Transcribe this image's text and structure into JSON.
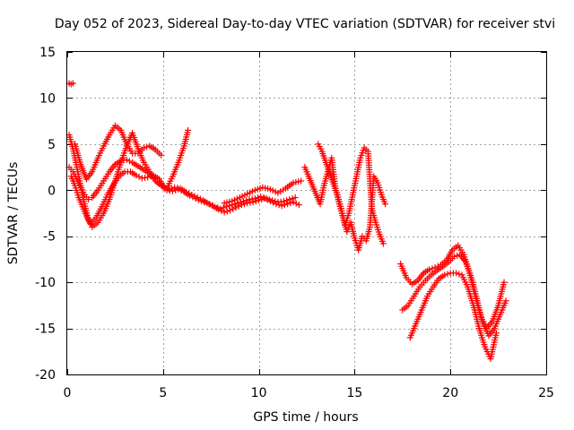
{
  "chart_data": {
    "type": "scatter",
    "title": "Day 052 of 2023, Sidereal Day-to-day VTEC variation (SDTVAR) for receiver stvi",
    "xlabel": "GPS time / hours",
    "ylabel": "SDTVAR / TECUs",
    "xlim": [
      0,
      25
    ],
    "ylim": [
      -20,
      15
    ],
    "x_ticks": [
      0,
      5,
      10,
      15,
      20,
      25
    ],
    "y_ticks": [
      -20,
      -15,
      -10,
      -5,
      0,
      5,
      10,
      15
    ],
    "grid": true,
    "legend": "none",
    "marker": "plus",
    "color": "#ff0000",
    "series": [
      {
        "x": [
          0.1,
          0.2,
          0.3
        ],
        "y": [
          11.6,
          11.5,
          11.6
        ]
      },
      {
        "x": [
          0.1,
          0.3,
          0.5,
          0.7,
          0.9,
          1.1,
          1.3,
          1.6,
          1.9,
          2.2,
          2.5,
          2.8,
          3.1,
          3.4,
          3.7,
          4.0,
          4.3,
          4.6,
          4.9,
          5.1,
          5.3,
          5.6,
          5.9,
          6.2,
          6.5,
          6.8,
          7.1,
          7.4,
          7.7,
          8.0,
          8.3,
          8.6,
          8.9,
          9.2,
          9.5,
          9.8,
          10.1,
          10.4,
          10.7,
          11.0,
          11.3,
          11.6,
          11.9
        ],
        "y": [
          2.5,
          2.0,
          1.2,
          0.3,
          -0.5,
          -1.0,
          -0.8,
          0.0,
          1.0,
          2.0,
          2.8,
          3.2,
          3.3,
          3.0,
          2.6,
          2.2,
          1.8,
          1.2,
          0.6,
          0.2,
          0.1,
          0.3,
          0.2,
          -0.2,
          -0.5,
          -0.8,
          -1.1,
          -1.5,
          -1.8,
          -2.0,
          -1.8,
          -1.6,
          -1.4,
          -1.2,
          -1.0,
          -0.9,
          -0.7,
          -0.9,
          -1.1,
          -1.3,
          -1.2,
          -1.0,
          -0.8
        ]
      },
      {
        "x": [
          0.2,
          0.4,
          0.6,
          0.8,
          1.0,
          1.2,
          1.5,
          1.8,
          2.1,
          2.4,
          2.7,
          3.0,
          3.3,
          3.6,
          3.9,
          4.2,
          4.5,
          4.8,
          5.0,
          5.2,
          5.5,
          5.8,
          6.1,
          6.4,
          6.7,
          7.0,
          7.3,
          7.6,
          7.9,
          8.2,
          8.5,
          8.8,
          9.1,
          9.4,
          9.7,
          10.0,
          10.3,
          10.6,
          10.9,
          11.2,
          11.5,
          11.8,
          12.1
        ],
        "y": [
          1.5,
          0.5,
          -0.8,
          -1.8,
          -2.8,
          -3.6,
          -3.0,
          -1.8,
          -0.5,
          0.6,
          1.5,
          2.0,
          2.0,
          1.6,
          1.3,
          1.4,
          1.6,
          1.2,
          0.5,
          0.0,
          -0.1,
          0.1,
          -0.2,
          -0.6,
          -0.9,
          -1.2,
          -1.4,
          -1.7,
          -2.1,
          -2.4,
          -2.2,
          -1.9,
          -1.6,
          -1.4,
          -1.3,
          -1.1,
          -0.9,
          -1.2,
          -1.5,
          -1.7,
          -1.5,
          -1.3,
          -1.6
        ]
      },
      {
        "x": [
          0.1,
          0.3,
          0.5,
          0.7,
          0.9,
          1.1,
          1.3,
          1.6,
          1.9,
          2.2,
          2.5,
          2.8,
          3.1,
          3.4,
          3.7,
          4.0,
          4.3,
          4.6,
          4.9,
          5.2,
          5.5,
          5.8,
          6.1,
          6.3
        ],
        "y": [
          6.0,
          4.5,
          2.5,
          0.5,
          -1.5,
          -3.2,
          -4.0,
          -3.5,
          -2.5,
          -1.0,
          1.0,
          3.0,
          4.8,
          6.2,
          4.5,
          3.0,
          2.0,
          1.0,
          0.5,
          0.2,
          1.5,
          3.0,
          4.8,
          6.5
        ]
      },
      {
        "x": [
          0.4,
          0.7,
          1.0,
          1.3,
          1.6,
          1.9,
          2.2,
          2.5,
          2.8,
          3.1,
          3.4,
          3.7,
          4.0,
          4.3,
          4.6,
          4.9
        ],
        "y": [
          5.0,
          2.8,
          1.2,
          2.0,
          3.5,
          4.8,
          6.0,
          7.0,
          6.5,
          5.0,
          4.0,
          4.0,
          4.6,
          4.8,
          4.4,
          3.8
        ]
      },
      {
        "x": [
          8.2,
          8.6,
          9.0,
          9.4,
          9.8,
          10.2,
          10.6,
          11.0,
          11.4,
          11.8,
          12.2
        ],
        "y": [
          -1.4,
          -1.2,
          -0.8,
          -0.4,
          0.0,
          0.3,
          0.1,
          -0.3,
          0.2,
          0.8,
          1.0
        ]
      },
      {
        "x": [
          12.4,
          12.6,
          13.2,
          13.4,
          13.6,
          13.8,
          14.0,
          14.2,
          14.4,
          14.6,
          14.8,
          15.0,
          15.2,
          15.4,
          15.6,
          15.8,
          16.0,
          16.2,
          16.4,
          16.6
        ],
        "y": [
          2.5,
          1.5,
          -1.5,
          0.5,
          2.0,
          3.5,
          0.2,
          -1.5,
          -3.0,
          -4.5,
          -3.5,
          -5.2,
          -6.5,
          -5.0,
          -5.5,
          -4.0,
          1.5,
          0.8,
          -0.5,
          -1.5
        ]
      },
      {
        "x": [
          13.1,
          13.3,
          13.5,
          14.1,
          14.3,
          14.5,
          14.7,
          14.9,
          15.1,
          15.3,
          15.5,
          15.7,
          15.9,
          16.1,
          16.3,
          16.5
        ],
        "y": [
          5.0,
          4.2,
          3.0,
          -0.5,
          -2.0,
          -3.8,
          -2.5,
          -0.5,
          1.5,
          3.5,
          4.6,
          4.2,
          -2.0,
          -3.5,
          -4.8,
          -5.8
        ]
      },
      {
        "x": [
          17.4,
          17.7,
          18.0,
          18.3,
          18.6,
          18.9,
          19.2,
          19.5,
          19.8,
          20.1,
          20.4,
          20.7,
          21.0,
          21.3,
          21.6,
          21.9,
          22.2,
          22.5,
          22.8
        ],
        "y": [
          -8.0,
          -9.5,
          -10.2,
          -9.8,
          -9.0,
          -8.6,
          -8.4,
          -8.1,
          -7.6,
          -6.5,
          -6.0,
          -7.0,
          -9.0,
          -11.5,
          -13.8,
          -15.0,
          -14.2,
          -12.5,
          -10.0
        ]
      },
      {
        "x": [
          17.5,
          17.8,
          18.1,
          18.4,
          18.7,
          19.0,
          19.3,
          19.6,
          19.9,
          20.2,
          20.5,
          20.8,
          21.1,
          21.4,
          21.7,
          22.0,
          22.3,
          22.6,
          22.9
        ],
        "y": [
          -13.0,
          -12.5,
          -11.5,
          -10.5,
          -9.8,
          -9.2,
          -8.7,
          -8.3,
          -7.8,
          -7.2,
          -7.0,
          -7.8,
          -9.5,
          -12.0,
          -14.5,
          -15.8,
          -15.0,
          -13.5,
          -12.0
        ]
      },
      {
        "x": [
          17.9,
          18.2,
          18.5,
          18.8,
          19.1,
          19.4,
          19.7,
          20.0,
          20.3,
          20.6,
          20.9,
          21.2,
          21.5,
          21.8,
          22.1,
          22.4
        ],
        "y": [
          -16.0,
          -14.5,
          -13.0,
          -11.5,
          -10.5,
          -9.6,
          -9.2,
          -9.0,
          -9.0,
          -9.2,
          -10.5,
          -12.5,
          -15.0,
          -17.0,
          -18.3,
          -15.5
        ]
      }
    ]
  }
}
